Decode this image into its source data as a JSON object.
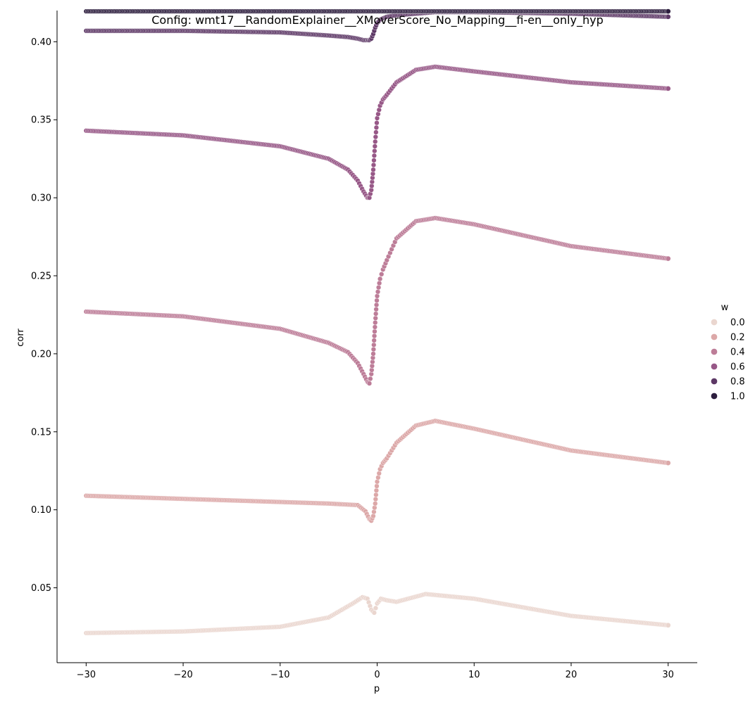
{
  "chart_data": {
    "type": "scatter",
    "title": "Config: wmt17__RandomExplainer__XMoverScore_No_Mapping__fi-en__only_hyp",
    "xlabel": "p",
    "ylabel": "corr",
    "xlim": [
      -33,
      33
    ],
    "ylim": [
      0.002,
      0.42
    ],
    "x_ticks": [
      -30,
      -20,
      -10,
      0,
      10,
      20,
      30
    ],
    "x_tick_labels": [
      "−30",
      "−20",
      "−10",
      "0",
      "10",
      "20",
      "30"
    ],
    "y_ticks": [
      0.05,
      0.1,
      0.15,
      0.2,
      0.25,
      0.3,
      0.35,
      0.4
    ],
    "y_tick_labels": [
      "0.05",
      "0.10",
      "0.15",
      "0.20",
      "0.25",
      "0.30",
      "0.35",
      "0.40"
    ],
    "grid": false,
    "legend": {
      "title": "w",
      "placement": "right",
      "entries": [
        "0.0",
        "0.2",
        "0.4",
        "0.6",
        "0.8",
        "1.0"
      ],
      "colors": [
        "#ead6cf",
        "#dca8a8",
        "#bd7d98",
        "#975887",
        "#5d3866",
        "#2d1e3e"
      ]
    },
    "series": [
      {
        "name": "0.0",
        "color": "#ead6cf",
        "x": [
          -30,
          -20,
          -10,
          -5,
          -2.5,
          -1.5,
          -1.0,
          -0.6,
          -0.3,
          0,
          0.4,
          1,
          2,
          5,
          10,
          20,
          30
        ],
        "y": [
          0.021,
          0.022,
          0.025,
          0.031,
          0.04,
          0.044,
          0.043,
          0.036,
          0.034,
          0.04,
          0.043,
          0.042,
          0.041,
          0.046,
          0.043,
          0.032,
          0.026
        ]
      },
      {
        "name": "0.2",
        "color": "#dca8a8",
        "x": [
          -30,
          -20,
          -10,
          -5,
          -2,
          -1.2,
          -0.8,
          -0.6,
          -0.4,
          -0.2,
          0,
          0.3,
          0.6,
          1,
          2,
          4,
          6,
          10,
          20,
          30
        ],
        "y": [
          0.109,
          0.107,
          0.105,
          0.104,
          0.103,
          0.099,
          0.094,
          0.093,
          0.096,
          0.104,
          0.118,
          0.126,
          0.13,
          0.133,
          0.143,
          0.154,
          0.157,
          0.152,
          0.138,
          0.13
        ]
      },
      {
        "name": "0.4",
        "color": "#bd7d98",
        "x": [
          -30,
          -20,
          -10,
          -5,
          -3,
          -2,
          -1.4,
          -1.0,
          -0.8,
          -0.6,
          -0.4,
          -0.2,
          0,
          0.3,
          0.6,
          1,
          2,
          4,
          6,
          10,
          20,
          30
        ],
        "y": [
          0.227,
          0.224,
          0.216,
          0.207,
          0.201,
          0.194,
          0.187,
          0.182,
          0.181,
          0.187,
          0.2,
          0.22,
          0.237,
          0.248,
          0.254,
          0.26,
          0.274,
          0.285,
          0.287,
          0.283,
          0.269,
          0.261
        ]
      },
      {
        "name": "0.6",
        "color": "#975887",
        "x": [
          -30,
          -20,
          -10,
          -5,
          -3,
          -2,
          -1.4,
          -1.0,
          -0.8,
          -0.6,
          -0.4,
          -0.2,
          0,
          0.3,
          0.6,
          1,
          2,
          4,
          6,
          10,
          20,
          30
        ],
        "y": [
          0.343,
          0.34,
          0.333,
          0.325,
          0.318,
          0.311,
          0.304,
          0.3,
          0.3,
          0.305,
          0.318,
          0.336,
          0.351,
          0.359,
          0.363,
          0.366,
          0.374,
          0.382,
          0.384,
          0.381,
          0.374,
          0.37
        ]
      },
      {
        "name": "0.8",
        "color": "#5d3866",
        "x": [
          -30,
          -20,
          -10,
          -5,
          -3,
          -2,
          -1.4,
          -1.0,
          -0.8,
          -0.6,
          -0.4,
          -0.2,
          0,
          0.3,
          0.6,
          1,
          2,
          4,
          6,
          10,
          20,
          30
        ],
        "y": [
          0.407,
          0.407,
          0.406,
          0.404,
          0.403,
          0.402,
          0.401,
          0.401,
          0.401,
          0.402,
          0.405,
          0.409,
          0.412,
          0.414,
          0.415,
          0.416,
          0.417,
          0.418,
          0.419,
          0.419,
          0.418,
          0.416
        ]
      },
      {
        "name": "1.0",
        "color": "#2d1e3e",
        "x": [
          -30,
          -20,
          -10,
          0,
          10,
          20,
          30
        ],
        "y": [
          0.4195,
          0.4195,
          0.4195,
          0.4195,
          0.4195,
          0.4195,
          0.4195
        ]
      }
    ]
  }
}
